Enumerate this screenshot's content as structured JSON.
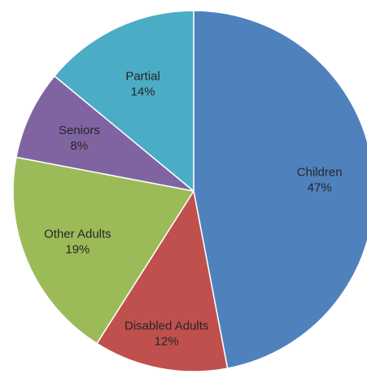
{
  "chart_data": {
    "type": "pie",
    "title": "",
    "slices": [
      {
        "label": "Children",
        "value": 47,
        "value_label": "47%",
        "color": "#4F81BD"
      },
      {
        "label": "Disabled Adults",
        "value": 12,
        "value_label": "12%",
        "color": "#C0504D"
      },
      {
        "label": "Other Adults",
        "value": 19,
        "value_label": "19%",
        "color": "#9BBB59"
      },
      {
        "label": "Seniors",
        "value": 8,
        "value_label": "8%",
        "color": "#8064A2"
      },
      {
        "label": "Partial",
        "value": 14,
        "value_label": "14%",
        "color": "#4BACC6"
      }
    ],
    "legend": "none",
    "data_labels": "inside"
  }
}
